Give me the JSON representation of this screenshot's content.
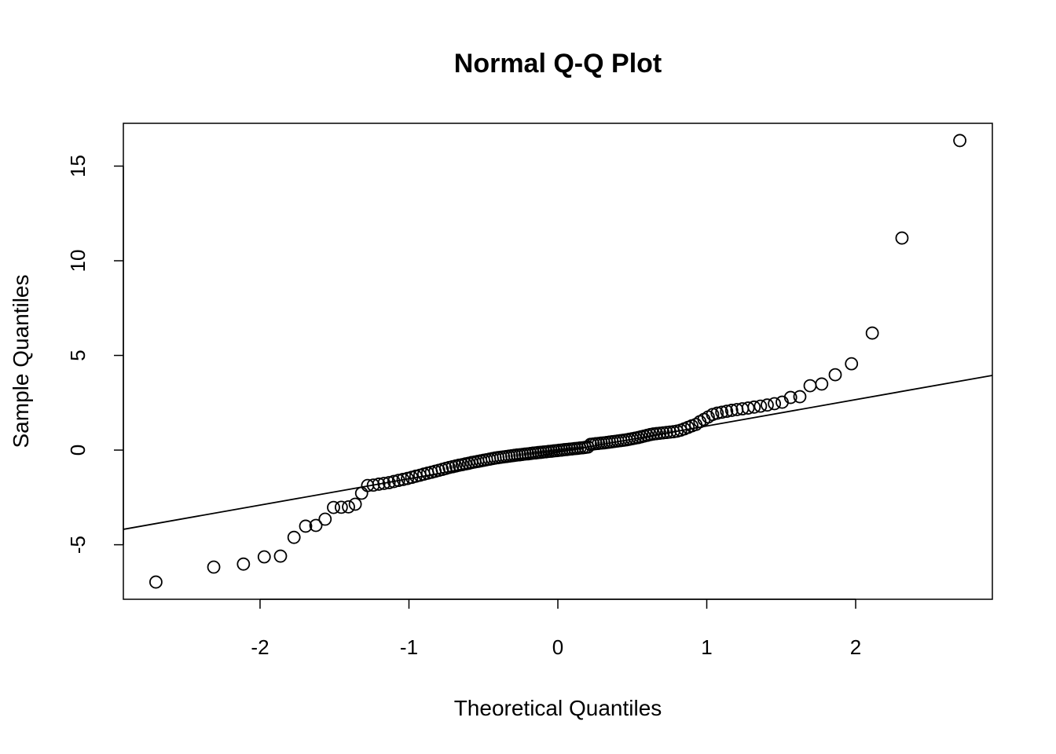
{
  "chart_data": {
    "type": "scatter",
    "title": "Normal Q-Q Plot",
    "xlabel": "Theoretical Quantiles",
    "ylabel": "Sample Quantiles",
    "xlim": [
      -2.918,
      2.918
    ],
    "ylim": [
      -7.88,
      17.26
    ],
    "xticks": [
      -2,
      -1,
      0,
      1,
      2
    ],
    "xtick_labels": [
      "-2",
      "-1",
      "0",
      "1",
      "2"
    ],
    "yticks": [
      -5,
      0,
      5,
      10,
      15
    ],
    "ytick_labels": [
      "-5",
      "0",
      "5",
      "10",
      "15"
    ],
    "grid": false,
    "n": 144,
    "theoretical_quantiles": "qnorm(ppoints(144))",
    "sample_values": [
      -6.97,
      -6.18,
      -6.02,
      -5.64,
      -5.6,
      -4.61,
      -4.02,
      -3.98,
      -3.65,
      -3.03,
      -3.02,
      -3.0,
      -2.86,
      -2.28,
      -1.87,
      -1.85,
      -1.8,
      -1.76,
      -1.72,
      -1.66,
      -1.6,
      -1.55,
      -1.5,
      -1.44,
      -1.38,
      -1.33,
      -1.27,
      -1.22,
      -1.17,
      -1.12,
      -1.07,
      -1.02,
      -0.97,
      -0.92,
      -0.88,
      -0.84,
      -0.8,
      -0.77,
      -0.73,
      -0.7,
      -0.66,
      -0.63,
      -0.6,
      -0.57,
      -0.54,
      -0.51,
      -0.48,
      -0.45,
      -0.42,
      -0.4,
      -0.38,
      -0.36,
      -0.34,
      -0.32,
      -0.3,
      -0.28,
      -0.26,
      -0.25,
      -0.23,
      -0.21,
      -0.2,
      -0.18,
      -0.16,
      -0.15,
      -0.13,
      -0.12,
      -0.1,
      -0.09,
      -0.07,
      -0.06,
      -0.04,
      -0.03,
      -0.01,
      0.0,
      0.02,
      0.03,
      0.05,
      0.06,
      0.08,
      0.09,
      0.11,
      0.12,
      0.14,
      0.16,
      0.3,
      0.32,
      0.34,
      0.35,
      0.37,
      0.38,
      0.4,
      0.42,
      0.44,
      0.46,
      0.48,
      0.5,
      0.52,
      0.54,
      0.57,
      0.6,
      0.63,
      0.66,
      0.7,
      0.74,
      0.78,
      0.82,
      0.85,
      0.87,
      0.89,
      0.91,
      0.93,
      0.95,
      0.97,
      1.0,
      1.05,
      1.12,
      1.2,
      1.28,
      1.35,
      1.5,
      1.62,
      1.75,
      1.88,
      1.95,
      2.0,
      2.05,
      2.1,
      2.14,
      2.18,
      2.22,
      2.27,
      2.32,
      2.38,
      2.45,
      2.53,
      2.78,
      2.82,
      3.4,
      3.49,
      3.98,
      4.56,
      6.18,
      11.2,
      16.35
    ],
    "reference_line": {
      "intercept": -0.12,
      "slope": 1.393
    },
    "point_style": "open-circle",
    "color": "#000000"
  }
}
